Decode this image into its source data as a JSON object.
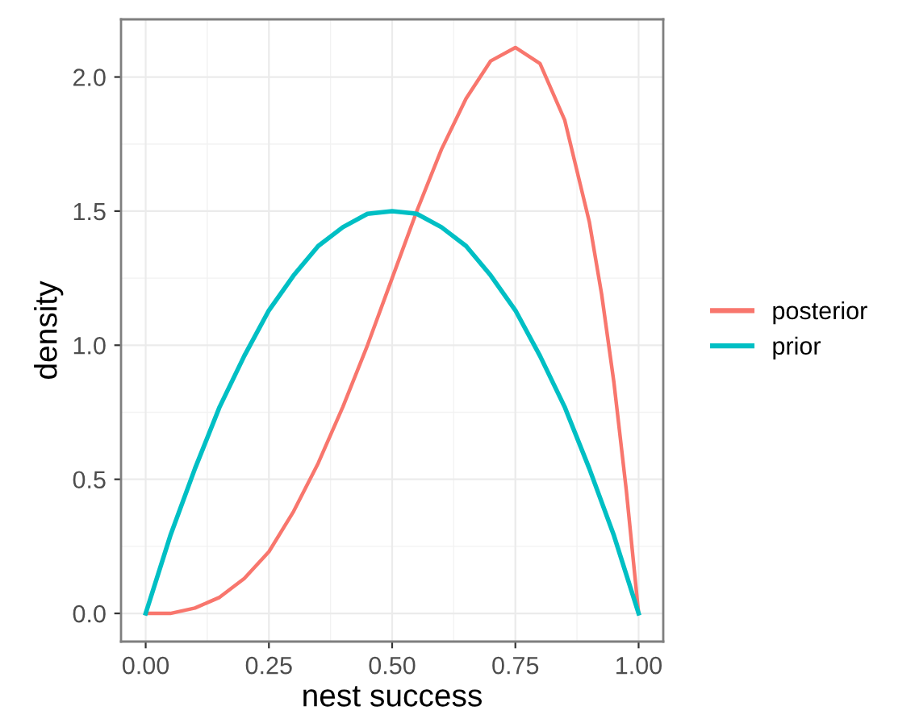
{
  "chart_data": {
    "type": "line",
    "xlabel": "nest success",
    "ylabel": "density",
    "xlim": [
      -0.05,
      1.05
    ],
    "xticks": [
      {
        "value": 0,
        "label": "0.00"
      },
      0.25,
      {
        "value": 0.5,
        "label": "0.50"
      },
      0.75,
      {
        "value": 1,
        "label": "1.00"
      }
    ],
    "ylim": [
      -0.105,
      2.215
    ],
    "yticks": [
      {
        "value": 0,
        "label": "0.0"
      },
      0.5,
      {
        "value": 1,
        "label": "1.0"
      },
      1.5,
      {
        "value": 2,
        "label": "2.0"
      }
    ],
    "grid": true,
    "legend": "right",
    "marker": "none",
    "line_style": "solid",
    "series": [
      {
        "name": "posterior",
        "color": "#f8766d",
        "x": [
          0,
          0.05,
          0.1,
          0.15,
          0.2,
          0.25,
          0.3,
          0.35,
          0.4,
          0.45,
          0.5,
          0.55,
          0.6,
          0.65,
          0.7,
          0.75,
          0.8,
          0.85,
          0.9,
          0.925,
          0.95,
          0.975,
          1
        ],
        "values": [
          0,
          0.0,
          0.02,
          0.06,
          0.13,
          0.23,
          0.38,
          0.56,
          0.77,
          1.0,
          1.25,
          1.5,
          1.73,
          1.92,
          2.06,
          2.11,
          2.05,
          1.84,
          1.46,
          1.19,
          0.86,
          0.46,
          0
        ]
      },
      {
        "name": "prior",
        "color": "#00bfc4",
        "x": [
          0,
          0.05,
          0.1,
          0.15,
          0.2,
          0.25,
          0.3,
          0.35,
          0.4,
          0.45,
          0.5,
          0.55,
          0.6,
          0.65,
          0.7,
          0.75,
          0.8,
          0.85,
          0.9,
          0.95,
          1
        ],
        "values": [
          0,
          0.29,
          0.54,
          0.77,
          0.96,
          1.13,
          1.26,
          1.37,
          1.44,
          1.49,
          1.5,
          1.49,
          1.44,
          1.37,
          1.26,
          1.13,
          0.96,
          0.77,
          0.54,
          0.29,
          0
        ]
      }
    ]
  }
}
